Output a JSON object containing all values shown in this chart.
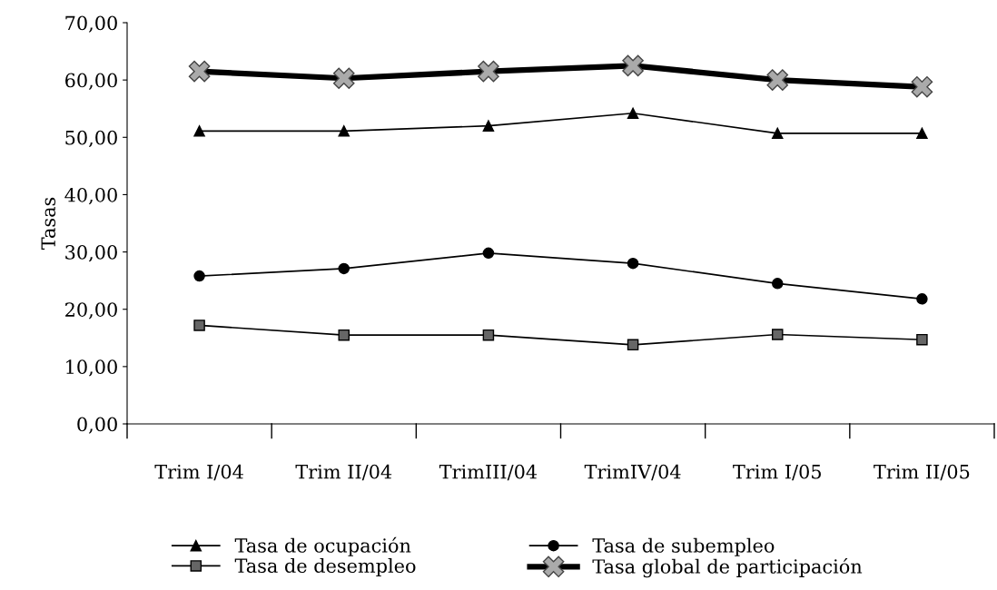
{
  "chart_data": {
    "type": "line",
    "ylabel": "Tasas",
    "categories": [
      "Trim I/04",
      "Trim II/04",
      "TrimIII/04",
      "TrimIV/04",
      "Trim I/05",
      "Trim II/05"
    ],
    "series": [
      {
        "name": "Tasa de ocupación",
        "color": "#000000",
        "marker": "triangle",
        "values": [
          51.1,
          51.1,
          52.0,
          54.2,
          50.7,
          50.7
        ]
      },
      {
        "name": "Tasa de desempleo",
        "color": "#000000",
        "marker": "square",
        "values": [
          17.2,
          15.5,
          15.5,
          13.8,
          15.6,
          14.7
        ]
      },
      {
        "name": "Tasa de subempleo",
        "color": "#000000",
        "marker": "circle",
        "values": [
          25.8,
          27.1,
          29.8,
          28.0,
          24.5,
          21.8
        ]
      },
      {
        "name": "Tasa global de participación",
        "color": "#000000",
        "marker": "cross",
        "values": [
          61.5,
          60.3,
          61.5,
          62.5,
          60.0,
          58.8
        ]
      }
    ],
    "ylim": [
      0,
      70
    ],
    "yticks": [
      {
        "value": 0,
        "label": "0,00"
      },
      {
        "value": 10,
        "label": "10,00"
      },
      {
        "value": 20,
        "label": "20,00"
      },
      {
        "value": 30,
        "label": "30,00"
      },
      {
        "value": 40,
        "label": "40,00"
      },
      {
        "value": 50,
        "label": "50,00"
      },
      {
        "value": 60,
        "label": "60,00"
      },
      {
        "value": 70,
        "label": "70,00"
      }
    ],
    "legend": "bottom",
    "grid": false,
    "line_style": "solid"
  }
}
